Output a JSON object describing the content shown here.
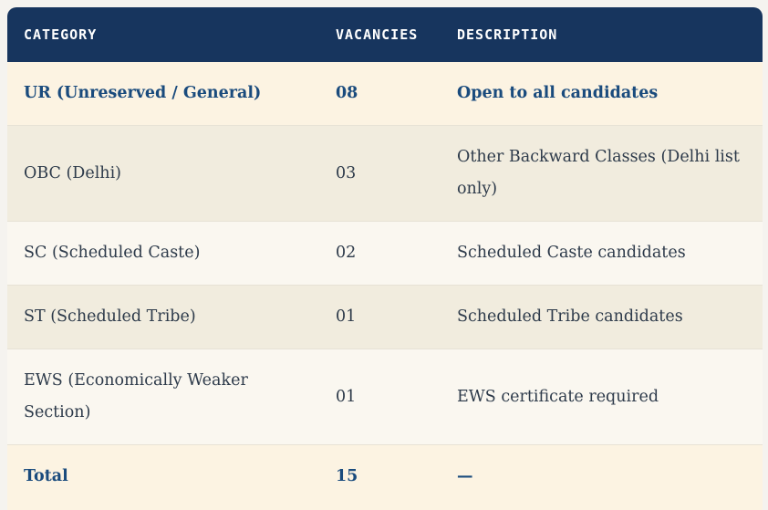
{
  "page": {
    "background_color": "#F5F3EF"
  },
  "table": {
    "name": "vacancy-breakdown-table",
    "colors": {
      "header_background": "#17355E",
      "header_text": "#FFFFFF",
      "emphasis_text": "#1A4B7D",
      "body_text": "#2D3A4A",
      "row_cream": "#FCF3E2",
      "row_beige": "#F1ECDE",
      "row_offwhite": "#FAF7F0",
      "divider": "#E7E2D5"
    },
    "columns": [
      {
        "key": "category",
        "label": "CATEGORY"
      },
      {
        "key": "vacancies",
        "label": "VACANCIES"
      },
      {
        "key": "description",
        "label": "DESCRIPTION"
      }
    ],
    "rows": [
      {
        "category": "UR (Unreserved / General)",
        "vacancies": "08",
        "description": "Open to all candidates",
        "emphasis": true,
        "background": "cream"
      },
      {
        "category": "OBC (Delhi)",
        "vacancies": "03",
        "description": "Other Backward Classes (Delhi list only)",
        "emphasis": false,
        "background": "beige"
      },
      {
        "category": "SC (Scheduled Caste)",
        "vacancies": "02",
        "description": "Scheduled Caste candidates",
        "emphasis": false,
        "background": "offwhite"
      },
      {
        "category": "ST (Scheduled Tribe)",
        "vacancies": "01",
        "description": "Scheduled Tribe candidates",
        "emphasis": false,
        "background": "beige"
      },
      {
        "category": "EWS (Economically Weaker Section)",
        "vacancies": "01",
        "description": "EWS certificate required",
        "emphasis": false,
        "background": "offwhite"
      },
      {
        "category": "Total",
        "vacancies": "15",
        "description": "—",
        "emphasis": true,
        "background": "cream"
      }
    ]
  },
  "chart_data": {
    "type": "table",
    "title": "",
    "categories": [
      "UR (Unreserved / General)",
      "OBC (Delhi)",
      "SC (Scheduled Caste)",
      "ST (Scheduled Tribe)",
      "EWS (Economically Weaker Section)",
      "Total"
    ],
    "values": [
      8,
      3,
      2,
      1,
      1,
      15
    ]
  }
}
